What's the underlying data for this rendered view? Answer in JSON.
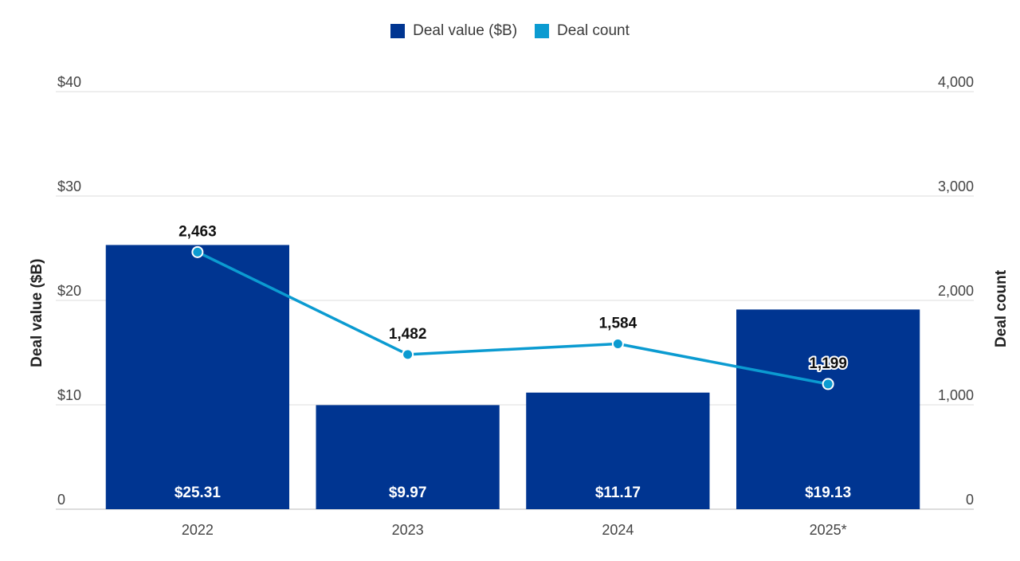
{
  "chart_data": {
    "type": "bar",
    "title": "",
    "categories": [
      "2022",
      "2023",
      "2024",
      "2025*"
    ],
    "series": [
      {
        "name": "Deal value ($B)",
        "type": "bar",
        "axis": "left",
        "color": "#003591",
        "values": [
          25.31,
          9.97,
          11.17,
          19.13
        ],
        "labels": [
          "$25.31",
          "$9.97",
          "$11.17",
          "$19.13"
        ]
      },
      {
        "name": "Deal count",
        "type": "line",
        "axis": "right",
        "color": "#0b9bd1",
        "values": [
          2463,
          1482,
          1584,
          1199
        ],
        "labels": [
          "2,463",
          "1,482",
          "1,584",
          "1,199"
        ]
      }
    ],
    "y_left": {
      "label": "Deal value ($B)",
      "range": [
        0,
        40
      ],
      "ticks": [
        0,
        10,
        20,
        30,
        40
      ],
      "tick_labels": [
        "0",
        "$10",
        "$20",
        "$30",
        "$40"
      ]
    },
    "y_right": {
      "label": "Deal count",
      "range": [
        0,
        4000
      ],
      "ticks": [
        0,
        1000,
        2000,
        3000,
        4000
      ],
      "tick_labels": [
        "0",
        "1,000",
        "2,000",
        "3,000",
        "4,000"
      ]
    },
    "legend_position": "top-center",
    "grid": true
  }
}
